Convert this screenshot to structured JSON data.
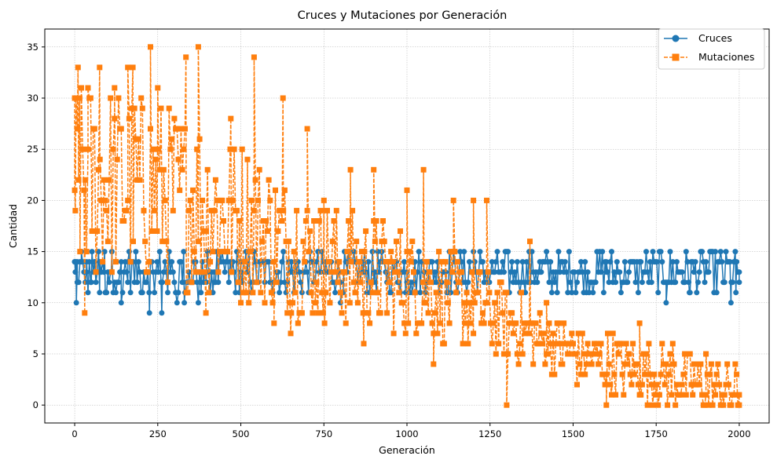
{
  "chart_data": {
    "type": "line",
    "title": "Cruces y Mutaciones por Generación",
    "xlabel": "Generación",
    "ylabel": "Cantidad",
    "xlim": [
      -90,
      2090
    ],
    "ylim": [
      -1.75,
      36.75
    ],
    "x_ticks": [
      0,
      250,
      500,
      750,
      1000,
      1250,
      1500,
      1750,
      2000
    ],
    "y_ticks": [
      0,
      5,
      10,
      15,
      20,
      25,
      30,
      35
    ],
    "grid": true,
    "legend_position": "top-right",
    "colors": {
      "cruces": "#1f77b4",
      "mutaciones": "#ff7f0e",
      "grid": "#b0b0b0"
    },
    "series": [
      {
        "name": "Cruces",
        "marker": "circle",
        "linestyle": "solid",
        "summary": {
          "x_range": [
            0,
            2000
          ],
          "values_observed": [
            9,
            10,
            11,
            12,
            13,
            14,
            15
          ],
          "typical_range": [
            11,
            15
          ],
          "min_points": [
            [
              225,
              9
            ],
            [
              262,
              9
            ]
          ]
        },
        "anchor_points": [
          [
            0,
            14
          ],
          [
            2,
            13
          ],
          [
            5,
            10
          ],
          [
            8,
            12
          ],
          [
            20,
            15
          ],
          [
            35,
            13
          ],
          [
            50,
            12
          ],
          [
            60,
            14
          ],
          [
            75,
            11
          ],
          [
            90,
            15
          ],
          [
            110,
            13
          ],
          [
            140,
            10
          ],
          [
            160,
            14
          ],
          [
            225,
            9
          ],
          [
            262,
            9
          ],
          [
            330,
            10
          ],
          [
            380,
            11
          ],
          [
            420,
            12
          ],
          [
            500,
            13
          ],
          [
            650,
            13
          ],
          [
            800,
            10
          ],
          [
            900,
            12
          ],
          [
            1000,
            13
          ],
          [
            1200,
            15
          ],
          [
            1400,
            13
          ],
          [
            1600,
            14
          ],
          [
            1780,
            10
          ],
          [
            1850,
            11
          ],
          [
            1975,
            10
          ],
          [
            1990,
            11
          ],
          [
            2000,
            12
          ]
        ]
      },
      {
        "name": "Mutaciones",
        "marker": "square",
        "linestyle": "dashed",
        "summary": {
          "x_range": [
            0,
            2000
          ],
          "max_points": [
            [
              228,
              35
            ],
            [
              372,
              35
            ]
          ],
          "trend": [
            [
              0,
              22
            ],
            [
              250,
              21
            ],
            [
              500,
              18
            ],
            [
              750,
              14
            ],
            [
              1000,
              12
            ],
            [
              1250,
              9
            ],
            [
              1500,
              5
            ],
            [
              1750,
              3
            ],
            [
              2000,
              1
            ]
          ]
        },
        "anchor_points": [
          [
            0,
            21
          ],
          [
            2,
            19
          ],
          [
            10,
            33
          ],
          [
            15,
            30
          ],
          [
            30,
            9
          ],
          [
            40,
            31
          ],
          [
            75,
            33
          ],
          [
            120,
            31
          ],
          [
            160,
            33
          ],
          [
            175,
            33
          ],
          [
            228,
            35
          ],
          [
            250,
            31
          ],
          [
            335,
            34
          ],
          [
            372,
            35
          ],
          [
            395,
            9
          ],
          [
            470,
            28
          ],
          [
            540,
            34
          ],
          [
            600,
            8
          ],
          [
            627,
            30
          ],
          [
            650,
            7
          ],
          [
            700,
            27
          ],
          [
            750,
            20
          ],
          [
            830,
            23
          ],
          [
            870,
            6
          ],
          [
            900,
            23
          ],
          [
            1000,
            21
          ],
          [
            1050,
            23
          ],
          [
            1080,
            4
          ],
          [
            1140,
            20
          ],
          [
            1200,
            20
          ],
          [
            1240,
            20
          ],
          [
            1300,
            0
          ],
          [
            1370,
            16
          ],
          [
            1420,
            10
          ],
          [
            1500,
            6
          ],
          [
            1600,
            0
          ],
          [
            1700,
            8
          ],
          [
            1800,
            6
          ],
          [
            1850,
            5
          ],
          [
            1900,
            5
          ],
          [
            1950,
            1
          ],
          [
            2000,
            0
          ]
        ]
      }
    ]
  }
}
